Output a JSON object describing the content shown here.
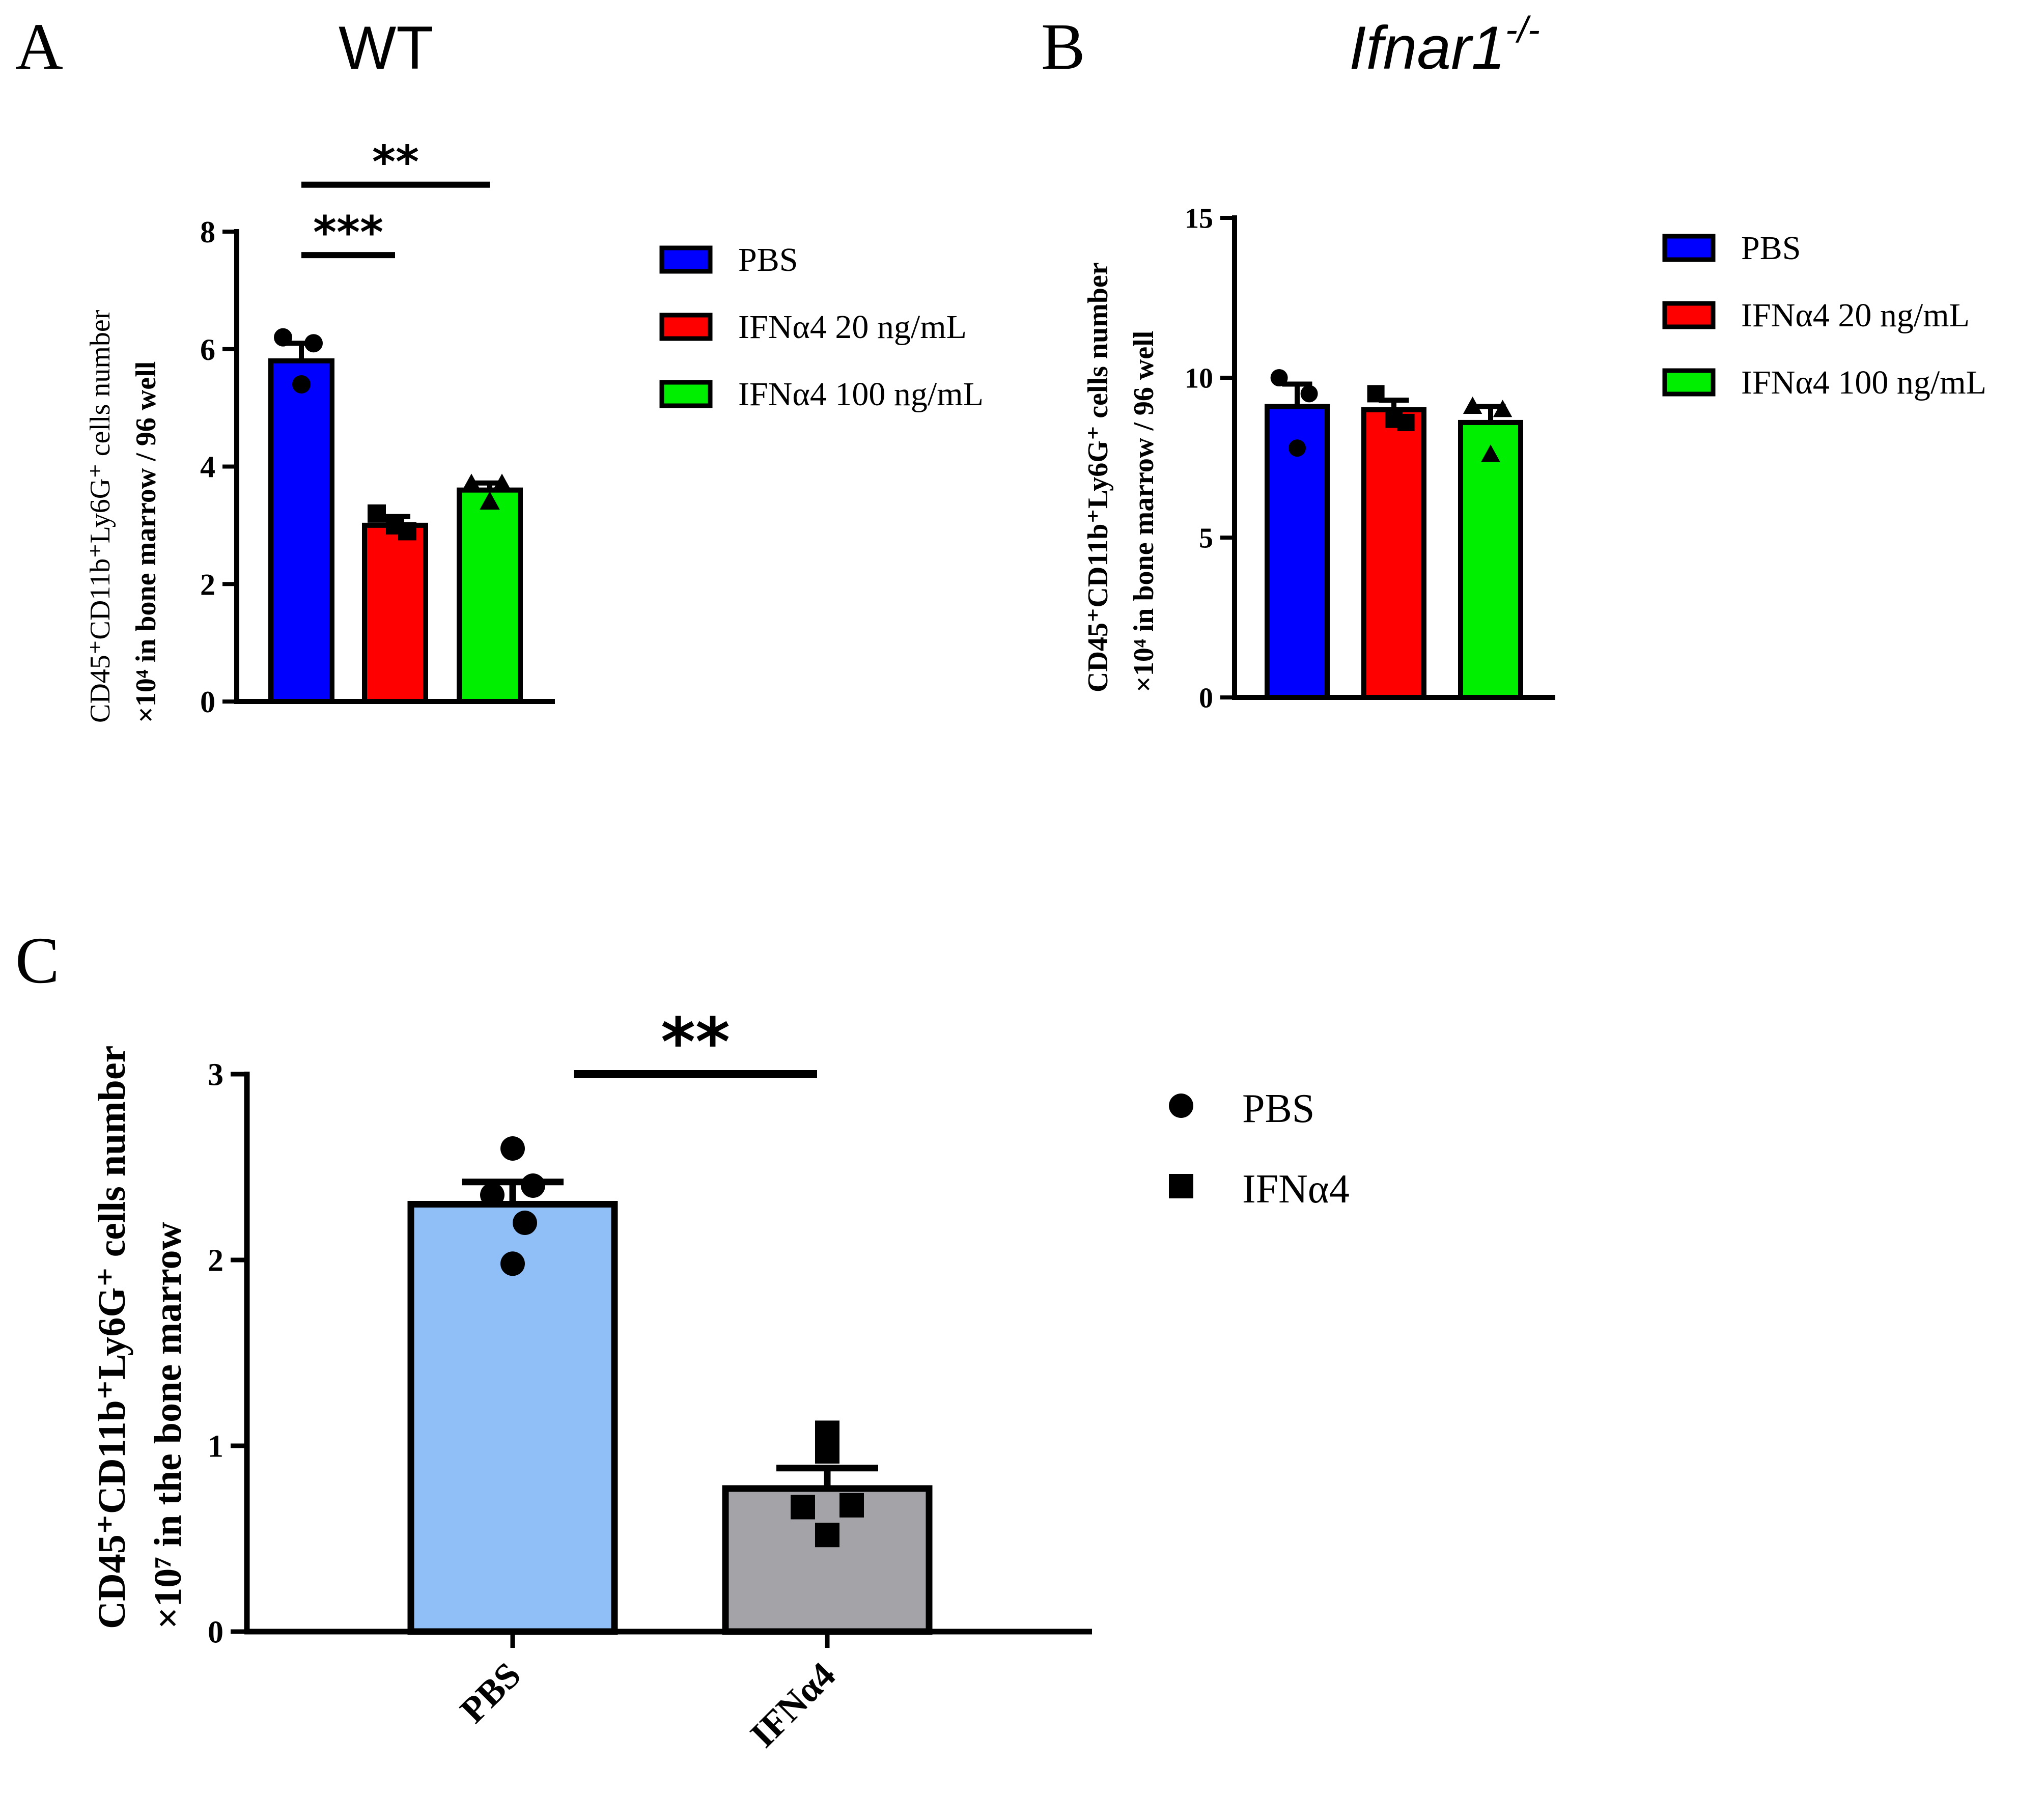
{
  "panels": {
    "A": {
      "letter": "A",
      "title": "WT"
    },
    "B": {
      "letter": "B",
      "title_main": "Ifnar1",
      "title_sup": "-/-"
    },
    "C": {
      "letter": "C"
    }
  },
  "colors": {
    "pbs": "#0000ff",
    "ifn20": "#ff0000",
    "ifn100": "#00ee00",
    "c_pbs": "#90bff8",
    "c_ifn": "#a3a3a8",
    "ink": "#000000"
  },
  "chart_data": [
    {
      "panel": "A",
      "type": "bar",
      "title": "WT",
      "ylabel_line1": "CD45⁺CD11b⁺Ly6G⁺ cells number",
      "ylabel_line2": "×10⁴ in bone marrow / 96 well",
      "ylim": [
        0,
        8
      ],
      "yticks": [
        "0",
        "2",
        "4",
        "6",
        "8"
      ],
      "legend_position": "right",
      "series": [
        {
          "name": "PBS",
          "value": 5.8,
          "sem": 0.3,
          "points": [
            6.2,
            6.1,
            5.4
          ],
          "marker": "circle",
          "color_key": "pbs"
        },
        {
          "name": "IFNα4 20 ng/mL",
          "value": 3.0,
          "sem": 0.15,
          "points": [
            3.2,
            2.9,
            3.0
          ],
          "marker": "square",
          "color_key": "ifn20"
        },
        {
          "name": "IFNα4 100 ng/mL",
          "value": 3.6,
          "sem": 0.12,
          "points": [
            3.7,
            3.7,
            3.4
          ],
          "marker": "triangle",
          "color_key": "ifn100"
        }
      ],
      "significance": [
        {
          "label": "**",
          "from": 0,
          "to": 2,
          "y": 8.8
        },
        {
          "label": "***",
          "from": 0,
          "to": 1,
          "y": 7.6
        }
      ]
    },
    {
      "panel": "B",
      "type": "bar",
      "title": "Ifnar1-/-",
      "ylabel_line1": "CD45⁺CD11b⁺Ly6G⁺ cells number",
      "ylabel_line2": "×10⁴ in bone marrow / 96 well",
      "ylim": [
        0,
        15
      ],
      "yticks": [
        "0",
        "5",
        "10",
        "15"
      ],
      "legend_position": "right",
      "series": [
        {
          "name": "PBS",
          "value": 9.1,
          "sem": 0.7,
          "points": [
            10.0,
            9.5,
            7.8
          ],
          "marker": "circle",
          "color_key": "pbs"
        },
        {
          "name": "IFNα4 20 ng/mL",
          "value": 9.0,
          "sem": 0.3,
          "points": [
            9.5,
            8.6,
            8.7
          ],
          "marker": "square",
          "color_key": "ifn20"
        },
        {
          "name": "IFNα4 100 ng/mL",
          "value": 8.6,
          "sem": 0.5,
          "points": [
            9.1,
            9.0,
            7.6
          ],
          "marker": "triangle",
          "color_key": "ifn100"
        }
      ],
      "significance": []
    },
    {
      "panel": "C",
      "type": "bar",
      "ylabel_line1": "CD45⁺CD11b⁺Ly6G⁺ cells number",
      "ylabel_line2": "×10⁷ in the bone  marrow",
      "ylim": [
        0,
        3
      ],
      "yticks": [
        "0",
        "1",
        "2",
        "3"
      ],
      "categories": [
        "PBS",
        "IFNα4"
      ],
      "legend_position": "right",
      "series": [
        {
          "name": "PBS",
          "value": 2.3,
          "sem": 0.12,
          "points": [
            2.6,
            2.35,
            2.4,
            2.2,
            1.98
          ],
          "point_x": [
            0,
            -0.1,
            0.1,
            0.06,
            0
          ],
          "marker": "circle",
          "color_key": "c_pbs"
        },
        {
          "name": "IFNα4",
          "value": 0.77,
          "sem": 0.11,
          "points": [
            1.07,
            0.97,
            0.67,
            0.68,
            0.52
          ],
          "point_x": [
            0,
            0,
            -0.12,
            0.12,
            0
          ],
          "marker": "square",
          "color_key": "c_ifn"
        }
      ],
      "significance": [
        {
          "label": "**",
          "from": 0,
          "to": 1,
          "y": 3.0
        }
      ]
    }
  ]
}
